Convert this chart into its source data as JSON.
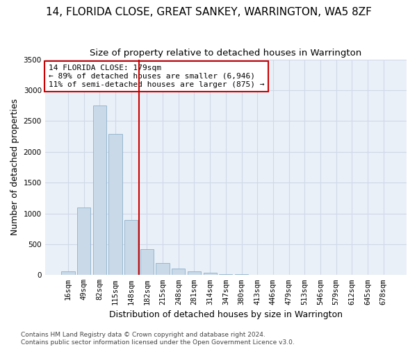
{
  "title": "14, FLORIDA CLOSE, GREAT SANKEY, WARRINGTON, WA5 8ZF",
  "subtitle": "Size of property relative to detached houses in Warrington",
  "xlabel": "Distribution of detached houses by size in Warrington",
  "ylabel": "Number of detached properties",
  "bar_color": "#c9d9e8",
  "bar_edge_color": "#8ab0cc",
  "grid_color": "#d0d8e8",
  "background_color": "#eaf0f8",
  "annotation_line_color": "#cc0000",
  "annotation_box_text": "14 FLORIDA CLOSE: 179sqm\n← 89% of detached houses are smaller (6,946)\n11% of semi-detached houses are larger (875) →",
  "annotation_box_color": "#cc0000",
  "bin_labels": [
    "16sqm",
    "49sqm",
    "82sqm",
    "115sqm",
    "148sqm",
    "182sqm",
    "215sqm",
    "248sqm",
    "281sqm",
    "314sqm",
    "347sqm",
    "380sqm",
    "413sqm",
    "446sqm",
    "479sqm",
    "513sqm",
    "546sqm",
    "579sqm",
    "612sqm",
    "645sqm",
    "678sqm"
  ],
  "bar_values": [
    55,
    1100,
    2750,
    2290,
    890,
    420,
    195,
    100,
    60,
    35,
    20,
    10,
    5,
    5,
    3,
    2,
    1,
    1,
    0,
    0,
    0
  ],
  "ylim": [
    0,
    3500
  ],
  "yticks": [
    0,
    500,
    1000,
    1500,
    2000,
    2500,
    3000,
    3500
  ],
  "footnote": "Contains HM Land Registry data © Crown copyright and database right 2024.\nContains public sector information licensed under the Open Government Licence v3.0.",
  "title_fontsize": 11,
  "subtitle_fontsize": 9.5,
  "tick_fontsize": 7.5,
  "ylabel_fontsize": 9,
  "xlabel_fontsize": 9,
  "annotation_fontsize": 8,
  "footnote_fontsize": 6.5
}
